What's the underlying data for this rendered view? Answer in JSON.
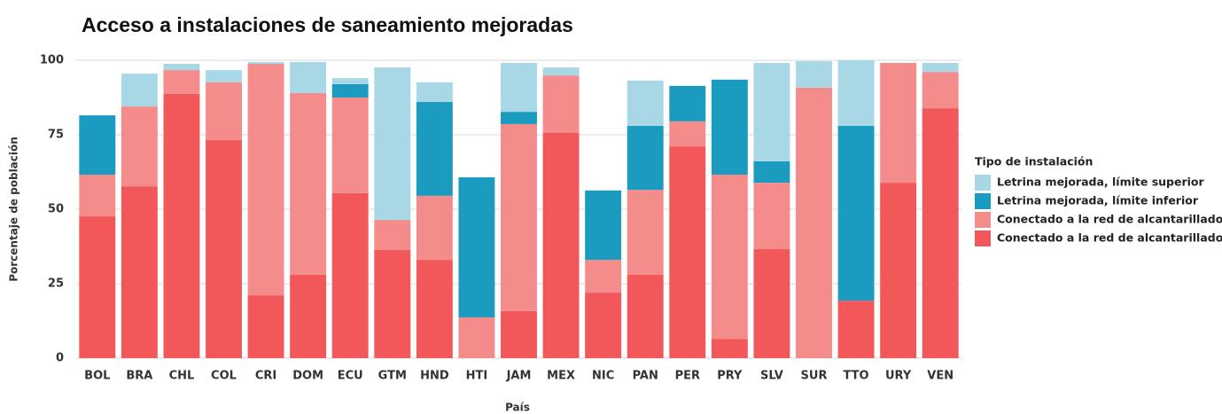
{
  "chart_data": {
    "type": "stacked_bar",
    "title": "Acceso a instalaciones de saneamiento mejoradas",
    "x_label": "País",
    "y_label": "Porcentaje de población",
    "legend_title": "Tipo de instalación",
    "categories": [
      "BOL",
      "BRA",
      "CHL",
      "COL",
      "CRI",
      "DOM",
      "ECU",
      "GTM",
      "HND",
      "HTI",
      "JAM",
      "MEX",
      "NIC",
      "PAN",
      "PER",
      "PRY",
      "SLV",
      "SUR",
      "TTO",
      "URY",
      "VEN"
    ],
    "series": [
      {
        "name": "Letrina mejorada, límite superior",
        "color": "#a8d8e6",
        "values": [
          0,
          11.0,
          2.1,
          4.1,
          0.6,
          10.4,
          2.0,
          51.2,
          6.6,
          0,
          16.4,
          2.7,
          0,
          15.2,
          0,
          0,
          33.0,
          8.9,
          22.0,
          0,
          3.0
        ]
      },
      {
        "name": "Letrina mejorada, límite inferior",
        "color": "#1a9bbf",
        "values": [
          19.9,
          0,
          0,
          0,
          0,
          0,
          4.5,
          0,
          31.5,
          47.0,
          4.1,
          0,
          23.3,
          21.5,
          11.9,
          31.9,
          7.2,
          0,
          58.7,
          0,
          0
        ]
      },
      {
        "name": "Conectado a la red de alcantarillado",
        "color": "#f48c8c",
        "values": [
          14.0,
          26.8,
          8.0,
          19.4,
          77.7,
          61.0,
          32.1,
          10.1,
          21.5,
          13.7,
          62.8,
          19.3,
          11.0,
          28.5,
          8.4,
          55.1,
          22.3,
          90.8,
          0,
          40.2,
          12.2
        ]
      },
      {
        "name": "Conectado a la red de alcantarillado",
        "color": "#f2585a",
        "values": [
          47.6,
          57.7,
          88.7,
          73.2,
          21.1,
          28.0,
          55.4,
          36.3,
          33.0,
          0,
          15.8,
          75.6,
          22.0,
          28.0,
          71.1,
          6.5,
          36.6,
          0,
          19.3,
          58.9,
          83.9
        ]
      }
    ],
    "ylim": [
      0,
      100
    ],
    "yticks": [
      0,
      25,
      50,
      75,
      100
    ],
    "grid": true,
    "legend": "right"
  }
}
